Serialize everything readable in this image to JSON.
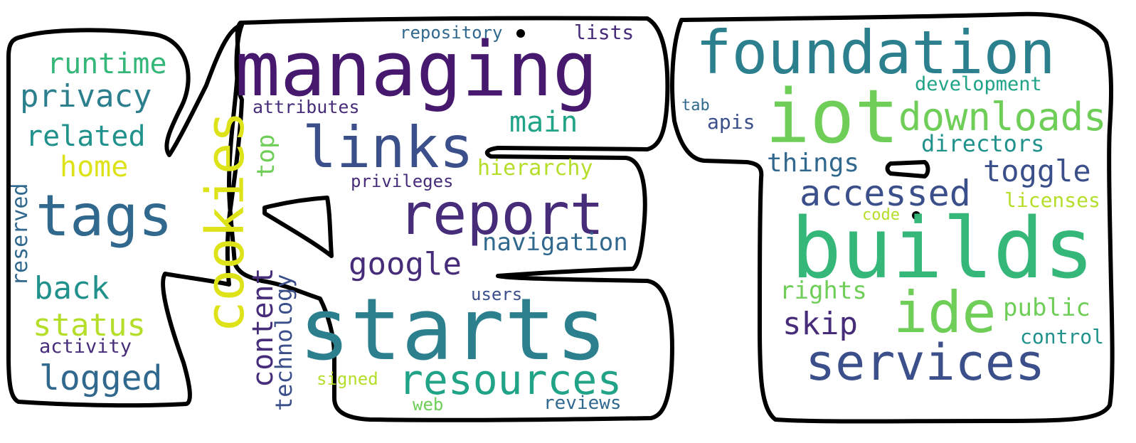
{
  "words": {
    "managing": "managing",
    "foundation": "foundation",
    "iot": "iot",
    "builds": "builds",
    "starts": "starts",
    "links": "links",
    "report": "report",
    "tags": "tags",
    "cookies": "cookies",
    "resources": "resources",
    "services": "services",
    "ide": "ide",
    "downloads": "downloads",
    "accessed": "accessed",
    "privacy": "privacy",
    "runtime": "runtime",
    "related": "related",
    "home": "home",
    "back": "back",
    "status": "status",
    "logged": "logged",
    "activity": "activity",
    "reserved": "reserved",
    "repository": "repository",
    "lists": "lists",
    "attributes": "attributes",
    "top": "top",
    "main": "main",
    "hierarchy": "hierarchy",
    "privileges": "privileges",
    "navigation": "navigation",
    "google": "google",
    "content": "content",
    "technology": "technology",
    "users": "users",
    "signed": "signed",
    "web": "web",
    "reviews": "reviews",
    "tab": "tab",
    "apis": "apis",
    "development": "development",
    "directors": "directors",
    "things": "things",
    "toggle": "toggle",
    "licenses": "licenses",
    "code": "code",
    "rights": "rights",
    "public": "public",
    "skip": "skip",
    "control": "control"
  },
  "colors": {
    "dark_purple": "#46186e",
    "purple": "#472c7a",
    "indigo": "#3b4f8a",
    "blue": "#31688e",
    "teal": "#2c808e",
    "teal_green": "#21918c",
    "green": "#20a386",
    "light_green": "#35b779",
    "lime": "#6ece58",
    "yellow_green": "#b5de2b",
    "yellow": "#dde318",
    "outline": "#000000"
  }
}
